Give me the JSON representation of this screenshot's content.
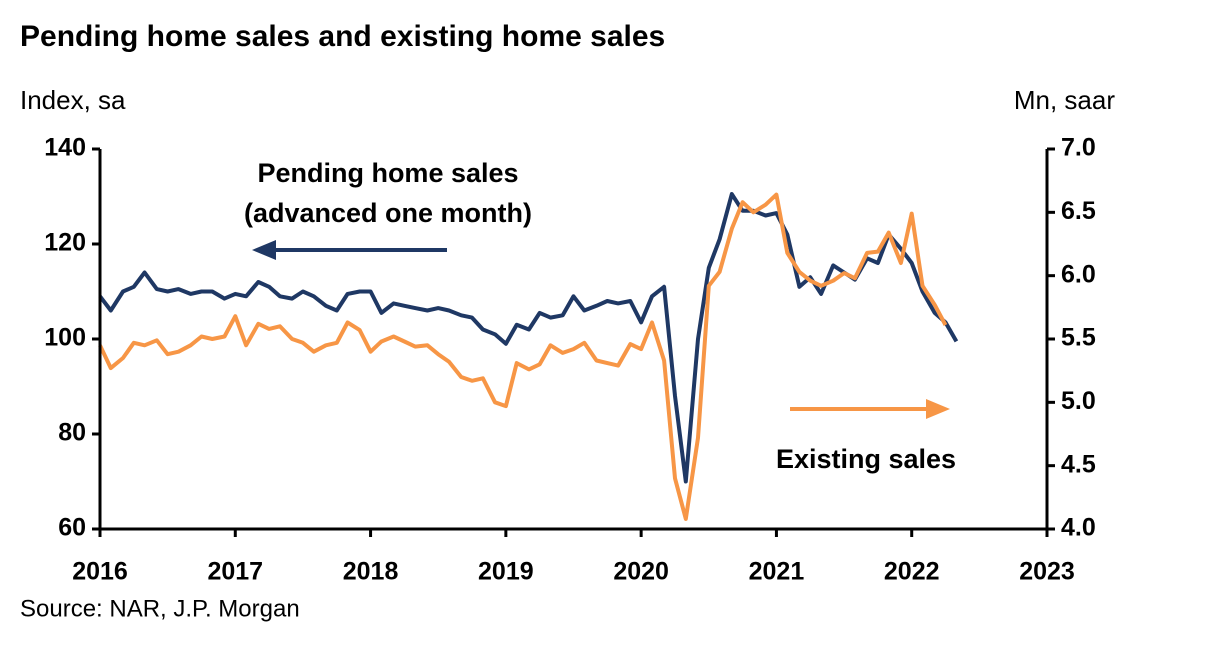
{
  "chart_data": {
    "type": "line",
    "title": "Pending home sales and existing home sales",
    "y_label": "Index, sa",
    "y2_label": "Mn, saar",
    "source": "Source: NAR, J.P. Morgan",
    "annotations": [
      "Pending home sales",
      "(advanced one month)",
      "Existing sales"
    ],
    "x": [
      2016,
      2016.08,
      2016.17,
      2016.25,
      2016.33,
      2016.42,
      2016.5,
      2016.58,
      2016.67,
      2016.75,
      2016.83,
      2016.92,
      2017,
      2017.08,
      2017.17,
      2017.25,
      2017.33,
      2017.42,
      2017.5,
      2017.58,
      2017.67,
      2017.75,
      2017.83,
      2017.92,
      2018,
      2018.08,
      2018.17,
      2018.25,
      2018.33,
      2018.42,
      2018.5,
      2018.58,
      2018.67,
      2018.75,
      2018.83,
      2018.92,
      2019,
      2019.08,
      2019.17,
      2019.25,
      2019.33,
      2019.42,
      2019.5,
      2019.58,
      2019.67,
      2019.75,
      2019.83,
      2019.92,
      2020,
      2020.08,
      2020.17,
      2020.25,
      2020.33,
      2020.42,
      2020.5,
      2020.58,
      2020.67,
      2020.75,
      2020.83,
      2020.92,
      2021,
      2021.08,
      2021.17,
      2021.25,
      2021.33,
      2021.42,
      2021.5,
      2021.58,
      2021.67,
      2021.75,
      2021.83,
      2021.92,
      2022,
      2022.08,
      2022.17,
      2022.25,
      2022.33
    ],
    "series": [
      {
        "name": "Pending home sales",
        "color": "#1f3864",
        "axis": "y",
        "values": [
          109,
          106,
          110,
          111,
          114,
          110.5,
          110,
          110.5,
          109.5,
          110,
          110,
          108.5,
          109.5,
          109,
          112,
          111,
          109,
          108.5,
          110,
          109,
          107,
          106,
          109.5,
          110,
          110,
          105.5,
          107.5,
          107,
          106.5,
          106,
          106.5,
          106,
          105,
          104.5,
          102,
          101,
          99,
          103,
          102,
          105.5,
          104.5,
          105,
          109,
          106,
          107,
          108,
          107.5,
          108,
          103.5,
          109,
          111,
          88,
          70,
          100,
          115,
          121,
          130.5,
          127,
          127,
          126,
          126.5,
          122,
          111,
          113,
          109.5,
          115.5,
          114,
          112.5,
          117,
          116,
          122,
          119,
          116,
          110,
          105.5,
          103.5,
          99.5
        ]
      },
      {
        "name": "Existing sales",
        "color": "#f79646",
        "axis": "y2",
        "values": [
          5.45,
          5.27,
          5.35,
          5.47,
          5.45,
          5.49,
          5.38,
          5.4,
          5.45,
          5.52,
          5.5,
          5.52,
          5.68,
          5.45,
          5.62,
          5.58,
          5.6,
          5.5,
          5.47,
          5.4,
          5.45,
          5.47,
          5.63,
          5.57,
          5.4,
          5.48,
          5.52,
          5.48,
          5.44,
          5.45,
          5.38,
          5.32,
          5.2,
          5.17,
          5.19,
          5,
          4.97,
          5.31,
          5.26,
          5.3,
          5.45,
          5.39,
          5.42,
          5.47,
          5.33,
          5.31,
          5.29,
          5.46,
          5.42,
          5.63,
          5.33,
          4.4,
          4.08,
          4.72,
          5.92,
          6.03,
          6.37,
          6.58,
          6.5,
          6.56,
          6.64,
          6.18,
          6.03,
          5.96,
          5.92,
          5.96,
          6.02,
          5.98,
          6.18,
          6.19,
          6.34,
          6.1,
          6.49,
          5.92,
          5.77,
          5.61,
          null
        ]
      }
    ],
    "xlim": [
      2016,
      2023
    ],
    "xticks": [
      2016,
      2017,
      2018,
      2019,
      2020,
      2021,
      2022,
      2023
    ],
    "ylim": [
      60,
      140
    ],
    "yticks": [
      60,
      80,
      100,
      120,
      140
    ],
    "y2lim": [
      4,
      7
    ],
    "y2ticks": [
      {
        "value": 4,
        "label": "4.0"
      },
      4.5,
      {
        "value": 5,
        "label": "5.0"
      },
      5.5,
      {
        "value": 6,
        "label": "6.0"
      },
      6.5,
      {
        "value": 7,
        "label": "7.0"
      }
    ]
  }
}
